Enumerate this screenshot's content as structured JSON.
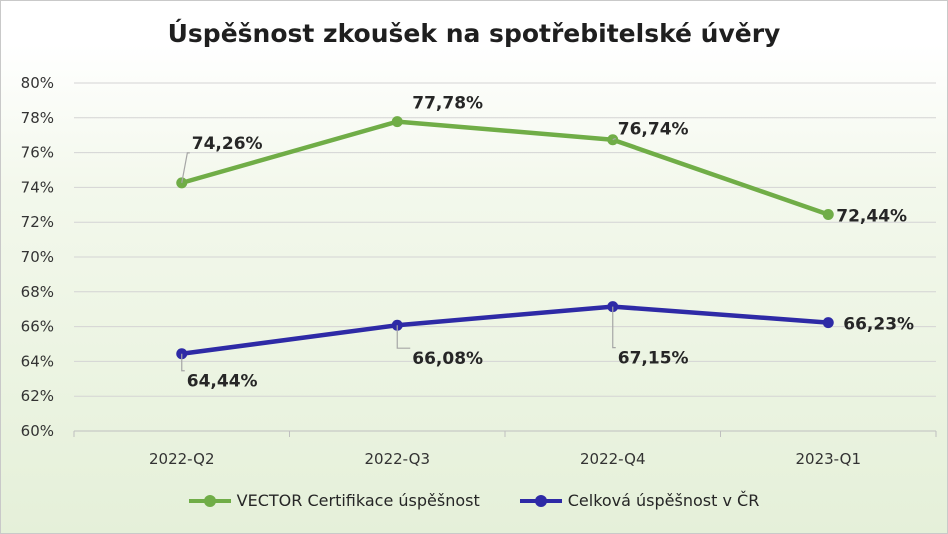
{
  "chart_data": {
    "type": "line",
    "title": "Úspěšnost zkoušek na spotřebitelské úvěry",
    "categories": [
      "2022-Q2",
      "2022-Q3",
      "2022-Q4",
      "2023-Q1"
    ],
    "ylim": [
      60,
      80
    ],
    "yticks": [
      "60%",
      "62%",
      "64%",
      "66%",
      "68%",
      "70%",
      "72%",
      "74%",
      "76%",
      "78%",
      "80%"
    ],
    "grid": true,
    "legend_position": "bottom",
    "series": [
      {
        "name": "VECTOR Certifikace úspěšnost",
        "color": "#70ad47",
        "values": [
          74.26,
          77.78,
          76.74,
          72.44
        ],
        "labels": [
          "74,26%",
          "77,78%",
          "76,74%",
          "72,44%"
        ]
      },
      {
        "name": "Celková úspěšnost v ČR",
        "color": "#2e2aa6",
        "values": [
          64.44,
          66.08,
          67.15,
          66.23
        ],
        "labels": [
          "64,44%",
          "66,08%",
          "67,15%",
          "66,23%"
        ]
      }
    ]
  }
}
